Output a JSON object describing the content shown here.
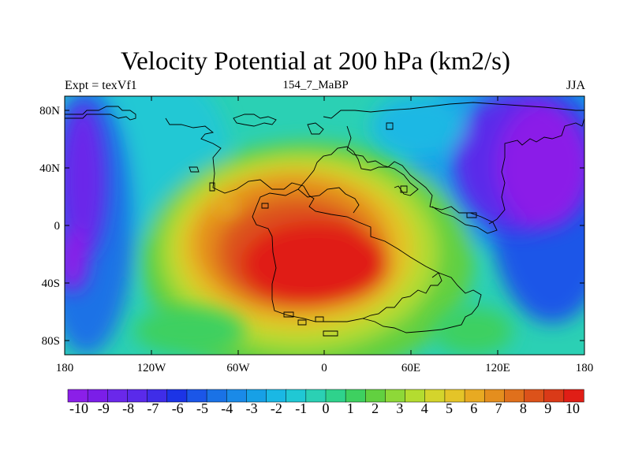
{
  "header": {
    "title": "Velocity Potential at 200 hPa (km2/s)",
    "left": "Expt = texVf1",
    "center": "154_7_MaBP",
    "right": "JJA"
  },
  "map": {
    "x_ticks": [
      "180",
      "120W",
      "60W",
      "0",
      "60E",
      "120E",
      "180"
    ],
    "y_ticks": [
      "80N",
      "40N",
      "0",
      "40S",
      "80S"
    ]
  },
  "colorbar": {
    "labels": [
      "-10",
      "-9",
      "-8",
      "-7",
      "-6",
      "-5",
      "-4",
      "-3",
      "-2",
      "-1",
      "0",
      "1",
      "2",
      "3",
      "4",
      "5",
      "6",
      "7",
      "8",
      "9",
      "10"
    ],
    "colors": [
      "#8b1fe8",
      "#7b1ee8",
      "#6a28ea",
      "#5a2aea",
      "#3f2de8",
      "#1c34e6",
      "#1b56e8",
      "#1a72e6",
      "#1a8ae8",
      "#17a0e6",
      "#1ab8e4",
      "#20c8d4",
      "#2bd0b4",
      "#2fd28c",
      "#3ed060",
      "#62d040",
      "#8ed838",
      "#b4dc30",
      "#d4d42c",
      "#e4c428",
      "#e8aa22",
      "#e48e1e",
      "#e0701c",
      "#dc521a",
      "#da3a18",
      "#e01e16"
    ]
  },
  "chart_data": {
    "type": "heatmap",
    "title": "Velocity Potential at 200 hPa (km2/s)",
    "left_label": "Expt = texVf1",
    "center_label": "154_7_MaBP",
    "right_label": "JJA",
    "x_range": [
      -180,
      180
    ],
    "y_range": [
      -90,
      90
    ],
    "x_ticks": [
      "180",
      "120W",
      "60W",
      "0",
      "60E",
      "120E",
      "180"
    ],
    "y_ticks": [
      "80N",
      "40N",
      "0",
      "40S",
      "80S"
    ],
    "contour_levels": [
      -10,
      -9,
      -8,
      -7,
      -6,
      -5,
      -4,
      -3,
      -2,
      -1,
      0,
      1,
      2,
      3,
      4,
      5,
      6,
      7,
      8,
      9,
      10
    ],
    "features": [
      {
        "description": "maximum",
        "lon": -10,
        "lat": -25,
        "value": 10
      },
      {
        "description": "minimum",
        "lon": 150,
        "lat": 40,
        "value": -10
      },
      {
        "description": "minimum",
        "lon": -175,
        "lat": 30,
        "value": -9
      }
    ]
  }
}
